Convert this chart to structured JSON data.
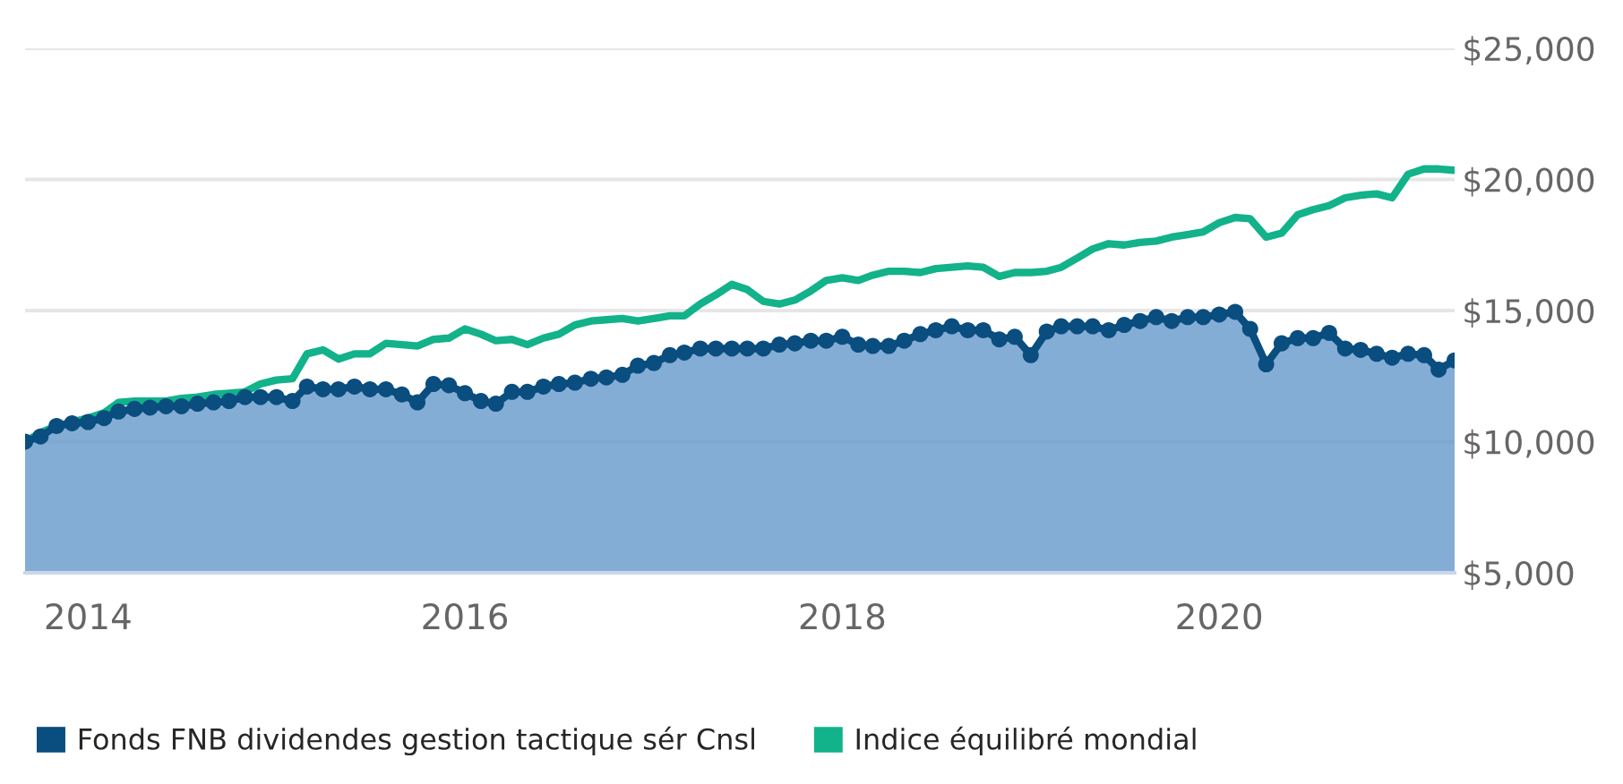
{
  "chart_data": {
    "type": "area",
    "x": [
      "2013-09-01",
      "2013-10-01",
      "2013-11-01",
      "2013-12-01",
      "2014-01-01",
      "2014-02-01",
      "2014-03-01",
      "2014-04-01",
      "2014-05-01",
      "2014-06-01",
      "2014-07-01",
      "2014-08-01",
      "2014-09-01",
      "2014-10-01",
      "2014-11-01",
      "2014-12-01",
      "2015-01-01",
      "2015-02-01",
      "2015-03-01",
      "2015-04-01",
      "2015-05-01",
      "2015-06-01",
      "2015-07-01",
      "2015-08-01",
      "2015-09-01",
      "2015-10-01",
      "2015-11-01",
      "2015-12-01",
      "2016-01-01",
      "2016-02-01",
      "2016-03-01",
      "2016-04-01",
      "2016-05-01",
      "2016-06-01",
      "2016-07-01",
      "2016-08-01",
      "2016-09-01",
      "2016-10-01",
      "2016-11-01",
      "2016-12-01",
      "2017-01-01",
      "2017-02-01",
      "2017-03-01",
      "2017-04-01",
      "2017-05-01",
      "2017-06-01",
      "2017-07-01",
      "2017-08-01",
      "2017-09-01",
      "2017-10-01",
      "2017-11-01",
      "2017-12-01",
      "2018-01-01",
      "2018-02-01",
      "2018-03-01",
      "2018-04-01",
      "2018-05-01",
      "2018-06-01",
      "2018-07-01",
      "2018-08-01",
      "2018-09-01",
      "2018-10-01",
      "2018-11-01",
      "2018-12-01",
      "2019-01-01",
      "2019-02-01",
      "2019-03-01",
      "2019-04-01",
      "2019-05-01",
      "2019-06-01",
      "2019-07-01",
      "2019-08-01",
      "2019-09-01",
      "2019-10-01",
      "2019-11-01",
      "2019-12-01",
      "2020-01-01",
      "2020-02-01",
      "2020-03-01",
      "2020-04-01",
      "2020-05-01",
      "2020-06-01",
      "2020-07-01",
      "2020-08-01",
      "2020-09-01",
      "2020-10-01",
      "2020-11-01",
      "2020-12-01",
      "2021-01-01",
      "2021-02-01",
      "2021-03-01",
      "2021-04-01"
    ],
    "series": [
      {
        "name": "Fonds FNB dividendes gestion tactique sér Cnsl",
        "color": "#0a4d7f",
        "marker": "circle",
        "values": [
          10000,
          10200,
          10600,
          10700,
          10750,
          10900,
          11150,
          11250,
          11300,
          11350,
          11350,
          11450,
          11500,
          11550,
          11700,
          11700,
          11700,
          11550,
          12100,
          12000,
          12000,
          12100,
          12000,
          12000,
          11800,
          11500,
          12200,
          12150,
          11850,
          11550,
          11450,
          11900,
          11900,
          12100,
          12200,
          12250,
          12400,
          12450,
          12550,
          12900,
          13000,
          13300,
          13400,
          13550,
          13550,
          13550,
          13550,
          13550,
          13700,
          13750,
          13850,
          13850,
          14000,
          13700,
          13650,
          13650,
          13850,
          14100,
          14250,
          14400,
          14250,
          14250,
          13900,
          14000,
          13300,
          14200,
          14400,
          14400,
          14400,
          14250,
          14450,
          14600,
          14750,
          14600,
          14750,
          14750,
          14850,
          14950,
          14300,
          12950,
          13750,
          13950,
          13950,
          14150,
          13550,
          13500,
          13350,
          13200,
          13350,
          13300,
          12750,
          13100
        ]
      },
      {
        "name": "Indice équilibré mondial",
        "type": "line",
        "color": "#12b28a",
        "marker": "none",
        "values": [
          10000,
          10350,
          10600,
          10750,
          10900,
          11100,
          11500,
          11550,
          11550,
          11550,
          11650,
          11700,
          11800,
          11850,
          11900,
          12200,
          12350,
          12400,
          13350,
          13500,
          13150,
          13350,
          13350,
          13750,
          13700,
          13650,
          13900,
          13950,
          14300,
          14100,
          13850,
          13900,
          13700,
          13950,
          14100,
          14450,
          14600,
          14650,
          14700,
          14600,
          14700,
          14800,
          14800,
          15250,
          15600,
          16000,
          15800,
          15350,
          15250,
          15400,
          15750,
          16150,
          16250,
          16150,
          16350,
          16500,
          16500,
          16450,
          16600,
          16650,
          16700,
          16650,
          16300,
          16450,
          16450,
          16500,
          16650,
          17000,
          17350,
          17550,
          17500,
          17600,
          17650,
          17800,
          17900,
          18000,
          18350,
          18550,
          18500,
          17800,
          17950,
          18650,
          18850,
          19000,
          19300,
          19400,
          19450,
          19300,
          20200,
          20400,
          20400,
          20350
        ]
      }
    ],
    "xlim": [
      "2013-09-01",
      "2021-04-01"
    ],
    "xticks": [
      {
        "value": "2014-01-01",
        "label": "2014"
      },
      {
        "value": "2016-01-01",
        "label": "2016"
      },
      {
        "value": "2018-01-01",
        "label": "2018"
      },
      {
        "value": "2020-01-01",
        "label": "2020"
      }
    ],
    "ylim": [
      5000,
      25000
    ],
    "yticks": [
      {
        "value": 5000,
        "label": "$5,000"
      },
      {
        "value": 10000,
        "label": "$10,000"
      },
      {
        "value": 15000,
        "label": "$15,000"
      },
      {
        "value": 20000,
        "label": "$20,000"
      },
      {
        "value": 25000,
        "label": "$25,000"
      }
    ],
    "grid": "y",
    "legend": "bottom",
    "line_style": "solid"
  }
}
